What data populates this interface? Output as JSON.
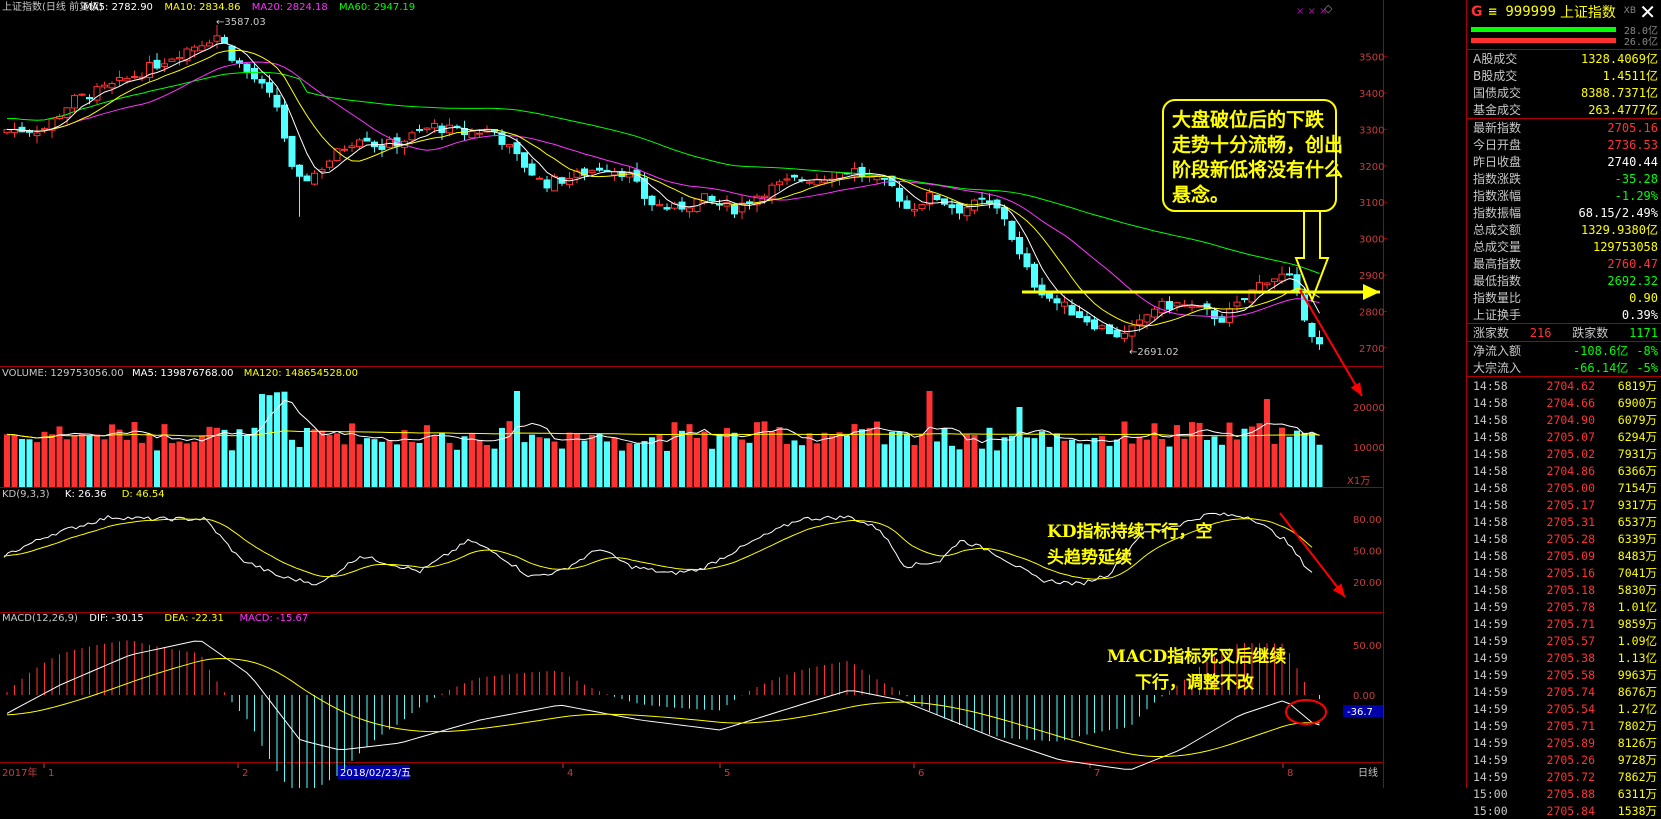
{
  "chart_header": {
    "main": [
      {
        "text": "上证指数(日线 前复权)",
        "color": "#c8c8c8"
      },
      {
        "text": "MA5: 2782.90",
        "color": "#ffffff"
      },
      {
        "text": "MA10: 2834.86",
        "color": "#ffff00"
      },
      {
        "text": "MA20: 2824.18",
        "color": "#ff33ff"
      },
      {
        "text": "MA60: 2947.19",
        "color": "#00ff00"
      }
    ],
    "volume": [
      {
        "text": "VOLUME: 129753056.00",
        "color": "#c8c8c8"
      },
      {
        "text": "MA5: 139876768.00",
        "color": "#ffffff"
      },
      {
        "text": "MA120: 148654528.00",
        "color": "#ffff00"
      }
    ],
    "kd": [
      {
        "text": "KD(9,3,3)",
        "color": "#c8c8c8"
      },
      {
        "text": "K: 26.36",
        "color": "#ffffff"
      },
      {
        "text": "D: 46.54",
        "color": "#ffff00"
      }
    ],
    "macd": [
      {
        "text": "MACD(12,26,9)",
        "color": "#c8c8c8"
      },
      {
        "text": "DIF: -30.15",
        "color": "#ffffff"
      },
      {
        "text": "DEA: -22.31",
        "color": "#ffff00"
      },
      {
        "text": "MACD: -15.67",
        "color": "#ff33ff"
      }
    ]
  },
  "chart_data": {
    "type": "candlestick",
    "y_axis_price": [
      "3500",
      "3400",
      "3300",
      "3200",
      "3100",
      "3000",
      "2900",
      "2800",
      "2700"
    ],
    "y_axis_volume": [
      "20000",
      "10000"
    ],
    "volume_unit": "X1万",
    "y_axis_kd": [
      "80.00",
      "50.00",
      "20.00"
    ],
    "y_axis_macd": [
      "50.00",
      "0.00"
    ],
    "macd_current": "-36.7",
    "x_labels": [
      "2017年",
      "1",
      "2",
      "2018/02/23/五",
      "4",
      "5",
      "6",
      "7",
      "8",
      "日线"
    ],
    "annotations": {
      "high": "3587.03",
      "low": "2691.02",
      "main_note": "大盘破位后的下跌走势十分流畅，创出阶段新低将没有什么悬念。",
      "kd_note": "KD指标持续下行，空头趋势延续",
      "macd_note": "MACD指标死叉后继续下行，调整不改"
    },
    "price_ylim": [
      2650,
      3620
    ],
    "kd_ylim": [
      0,
      100
    ],
    "macd_ylim": [
      -80,
      70
    ]
  },
  "colors": {
    "up": "#ff3232",
    "down": "#54ffff",
    "ma5": "#ffffff",
    "ma10": "#ffff00",
    "ma20": "#ff33ff",
    "ma60": "#00ff00",
    "annot": "#ffff00",
    "arrow": "#ff0000"
  },
  "panel": {
    "g": "G",
    "code": "≡  999999",
    "name": "上证指数",
    "xb": "XB",
    "bar1_val": "28.0亿",
    "bar2_val": "26.0亿",
    "stats": [
      {
        "label": "A股成交",
        "value": "1328.4069亿",
        "color": "#ffff00"
      },
      {
        "label": "B股成交",
        "value": "1.4511亿",
        "color": "#ffff00"
      },
      {
        "label": "国债成交",
        "value": "8388.7371亿",
        "color": "#ffff00"
      },
      {
        "label": "基金成交",
        "value": "263.4777亿",
        "color": "#ffff00"
      }
    ],
    "quotes": [
      {
        "label": "最新指数",
        "value": "2705.16",
        "color": "#ff3333"
      },
      {
        "label": "今日开盘",
        "value": "2736.53",
        "color": "#ff3333"
      },
      {
        "label": "昨日收盘",
        "value": "2740.44",
        "color": "#ffffff"
      },
      {
        "label": "指数涨跌",
        "value": "-35.28",
        "color": "#00ff00"
      },
      {
        "label": "指数涨幅",
        "value": "-1.29%",
        "color": "#00ff00"
      },
      {
        "label": "指数振幅",
        "value": "68.15/2.49%",
        "color": "#ffffff"
      },
      {
        "label": "总成交额",
        "value": "1329.9380亿",
        "color": "#ffff00"
      },
      {
        "label": "总成交量",
        "value": "129753058",
        "color": "#ffff00"
      },
      {
        "label": "最高指数",
        "value": "2760.47",
        "color": "#ff3333"
      },
      {
        "label": "最低指数",
        "value": "2692.32",
        "color": "#00ff00"
      },
      {
        "label": "指数量比",
        "value": "0.90",
        "color": "#ffff00"
      },
      {
        "label": "上证换手",
        "value": "0.39%",
        "color": "#ffffff"
      }
    ],
    "breadth": {
      "up_label": "涨家数",
      "up": "216",
      "down_label": "跌家数",
      "down": "1171"
    },
    "flows": [
      {
        "label": "净流入额",
        "value": "-108.6亿",
        "pct": "-8%"
      },
      {
        "label": "大宗流入",
        "value": "-66.14亿",
        "pct": "-5%"
      }
    ],
    "ticks": [
      {
        "t": "14:58",
        "p": "2704.62",
        "v": "6819万"
      },
      {
        "t": "14:58",
        "p": "2704.66",
        "v": "6900万"
      },
      {
        "t": "14:58",
        "p": "2704.90",
        "v": "6079万"
      },
      {
        "t": "14:58",
        "p": "2705.07",
        "v": "6294万"
      },
      {
        "t": "14:58",
        "p": "2705.02",
        "v": "7931万"
      },
      {
        "t": "14:58",
        "p": "2704.86",
        "v": "6366万"
      },
      {
        "t": "14:58",
        "p": "2705.00",
        "v": "7154万"
      },
      {
        "t": "14:58",
        "p": "2705.17",
        "v": "9317万"
      },
      {
        "t": "14:58",
        "p": "2705.31",
        "v": "6537万"
      },
      {
        "t": "14:58",
        "p": "2705.28",
        "v": "6339万"
      },
      {
        "t": "14:58",
        "p": "2705.09",
        "v": "8483万"
      },
      {
        "t": "14:58",
        "p": "2705.16",
        "v": "7041万"
      },
      {
        "t": "14:58",
        "p": "2705.18",
        "v": "5830万"
      },
      {
        "t": "14:59",
        "p": "2705.78",
        "v": "1.01亿"
      },
      {
        "t": "14:59",
        "p": "2705.71",
        "v": "9859万"
      },
      {
        "t": "14:59",
        "p": "2705.57",
        "v": "1.09亿"
      },
      {
        "t": "14:59",
        "p": "2705.38",
        "v": "1.13亿"
      },
      {
        "t": "14:59",
        "p": "2705.58",
        "v": "9963万"
      },
      {
        "t": "14:59",
        "p": "2705.74",
        "v": "8676万"
      },
      {
        "t": "14:59",
        "p": "2705.54",
        "v": "1.27亿"
      },
      {
        "t": "14:59",
        "p": "2705.71",
        "v": "7802万"
      },
      {
        "t": "14:59",
        "p": "2705.89",
        "v": "8126万"
      },
      {
        "t": "14:59",
        "p": "2705.26",
        "v": "9728万"
      },
      {
        "t": "14:59",
        "p": "2705.72",
        "v": "7862万"
      },
      {
        "t": "15:00",
        "p": "2705.88",
        "v": "6311万"
      },
      {
        "t": "15:00",
        "p": "2705.84",
        "v": "1538万"
      }
    ]
  }
}
